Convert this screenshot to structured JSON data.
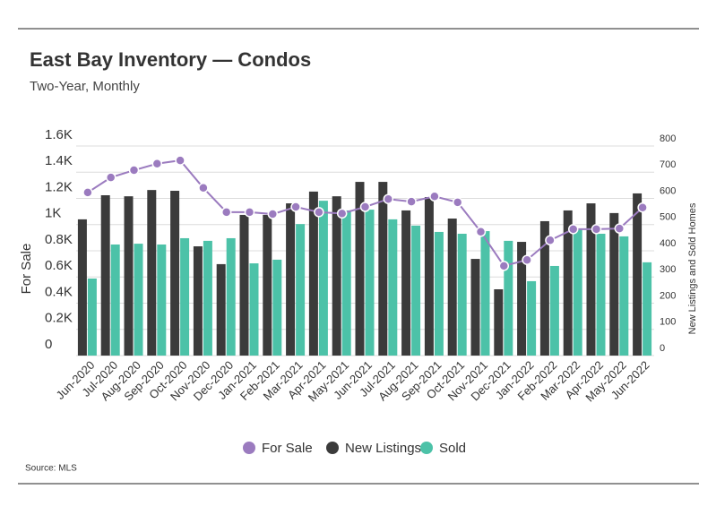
{
  "chart_data": {
    "type": "bar-line",
    "title": "East Bay Inventory — Condos",
    "subtitle": "Two-Year, Monthly",
    "ylabel": "For Sale",
    "y2label": "New Listings and Sold Homes",
    "source": "Source: MLS",
    "categories": [
      "Jun-2020",
      "Jul-2020",
      "Aug-2020",
      "Sep-2020",
      "Oct-2020",
      "Nov-2020",
      "Dec-2020",
      "Jan-2021",
      "Feb-2021",
      "Mar-2021",
      "Apr-2021",
      "May-2021",
      "Jun-2021",
      "Jul-2021",
      "Aug-2021",
      "Sep-2021",
      "Oct-2021",
      "Nov-2021",
      "Dec-2021",
      "Jan-2022",
      "Feb-2022",
      "Mar-2022",
      "Apr-2022",
      "May-2022",
      "Jun-2022"
    ],
    "series": [
      {
        "name": "For Sale",
        "type": "line",
        "axis": "y",
        "color": "#9b7bbf",
        "values": [
          1245,
          1360,
          1415,
          1465,
          1490,
          1280,
          1095,
          1095,
          1080,
          1135,
          1095,
          1085,
          1135,
          1195,
          1175,
          1215,
          1170,
          945,
          685,
          730,
          880,
          965,
          965,
          970,
          1130
        ]
      },
      {
        "name": "New Listings",
        "type": "bar",
        "axis": "y2",
        "color": "#3b3b3b",
        "values": [
          520,
          612,
          608,
          632,
          629,
          417,
          349,
          537,
          537,
          581,
          626,
          608,
          663,
          663,
          554,
          605,
          523,
          369,
          253,
          434,
          513,
          554,
          581,
          544,
          619
        ]
      },
      {
        "name": "Sold",
        "type": "bar",
        "axis": "y2",
        "color": "#4cc2a8",
        "values": [
          294,
          424,
          427,
          424,
          448,
          438,
          448,
          352,
          366,
          502,
          591,
          554,
          557,
          520,
          496,
          472,
          465,
          475,
          438,
          284,
          342,
          485,
          465,
          455,
          356
        ]
      }
    ],
    "ylim": [
      0,
      1600
    ],
    "yticks": [
      0,
      {
        "value": 200,
        "label": "0.2K"
      },
      {
        "value": 400,
        "label": "0.4K"
      },
      {
        "value": 600,
        "label": "0.6K"
      },
      {
        "value": 800,
        "label": "0.8K"
      },
      {
        "value": 1000,
        "label": "1K"
      },
      {
        "value": 1200,
        "label": "1.2K"
      },
      {
        "value": 1400,
        "label": "1.4K"
      },
      {
        "value": 1600,
        "label": "1.6K"
      }
    ],
    "y2lim": [
      0,
      800
    ],
    "y2ticks": [
      0,
      100,
      200,
      300,
      400,
      500,
      600,
      700,
      800
    ],
    "grid": true,
    "legend": "bottom"
  }
}
